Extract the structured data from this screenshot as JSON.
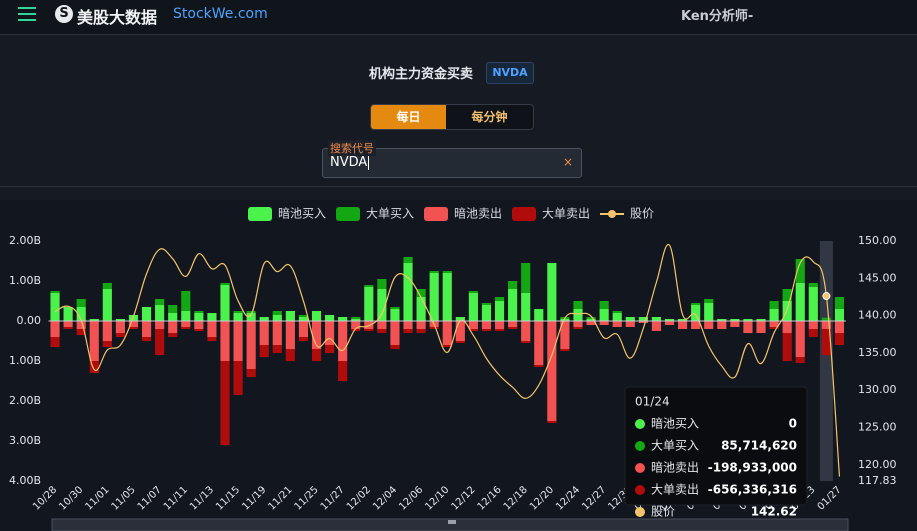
{
  "header": {
    "brand": "美股大数据",
    "site": "StockWe.com",
    "user": "Ken分析师-"
  },
  "page": {
    "title": "机构主力资金买卖",
    "symbol": "NVDA",
    "tabs": [
      "每日",
      "每分钟"
    ],
    "search_label": "搜索代号",
    "search_value": "NVDA"
  },
  "chart_data": {
    "type": "bar",
    "categories": [
      "10/28",
      null,
      "10/30",
      null,
      "11/01",
      null,
      "11/05",
      null,
      "11/07",
      null,
      "11/11",
      null,
      "11/13",
      null,
      "11/15",
      null,
      "11/19",
      null,
      "11/21",
      null,
      "11/25",
      null,
      "11/27",
      null,
      "12/02",
      null,
      "12/04",
      null,
      "12/06",
      null,
      "12/10",
      null,
      "12/12",
      null,
      "12/16",
      null,
      "12/18",
      null,
      "12/20",
      null,
      "12/24",
      null,
      "12/27",
      null,
      "12/31",
      null,
      "01/03",
      null,
      "01/07",
      null,
      "01/10",
      null,
      "01/14",
      null,
      "01/16",
      null,
      "01/21",
      null,
      "01/23",
      null,
      "01/27"
    ],
    "series": [
      {
        "name": "暗池买入",
        "color": "#4cf24c",
        "values": [
          700000000.0,
          350000000.0,
          350000000.0,
          50000000.0,
          800000000.0,
          50000000.0,
          150000000.0,
          350000000.0,
          400000000.0,
          200000000.0,
          250000000.0,
          200000000.0,
          200000000.0,
          900000000.0,
          200000000.0,
          200000000.0,
          100000000.0,
          150000000.0,
          250000000.0,
          100000000.0,
          250000000.0,
          150000000.0,
          100000000.0,
          50000000.0,
          850000000.0,
          800000000.0,
          300000000.0,
          1450000000.0,
          600000000.0,
          1200000000.0,
          1200000000.0,
          100000000.0,
          700000000.0,
          400000000.0,
          500000000.0,
          800000000.0,
          700000000.0,
          300000000.0,
          1450000000.0,
          50000000.0,
          300000000.0,
          50000000.0,
          300000000.0,
          200000000.0,
          100000000.0,
          100000000.0,
          100000000.0,
          50000000.0,
          50000000.0,
          400000000.0,
          450000000.0,
          50000000.0,
          50000000.0,
          50000000.0,
          50000000.0,
          300000000.0,
          500000000.0,
          950000000.0,
          850000000.0,
          0,
          300000000.0
        ]
      },
      {
        "name": "大单买入",
        "color": "#13a813",
        "values": [
          50000000.0,
          0,
          200000000.0,
          0,
          150000000.0,
          0,
          0,
          0,
          150000000.0,
          200000000.0,
          500000000.0,
          50000000.0,
          0,
          50000000.0,
          50000000.0,
          50000000.0,
          0,
          100000000.0,
          0,
          50000000.0,
          0,
          0,
          0,
          50000000.0,
          50000000.0,
          250000000.0,
          50000000.0,
          150000000.0,
          200000000.0,
          50000000.0,
          50000000.0,
          0,
          50000000.0,
          50000000.0,
          100000000.0,
          200000000.0,
          750000000.0,
          0,
          0,
          50000000.0,
          200000000.0,
          50000000.0,
          200000000.0,
          50000000.0,
          0,
          0,
          0,
          0,
          0,
          50000000.0,
          100000000.0,
          0,
          0,
          0,
          0,
          200000000.0,
          300000000.0,
          600000000.0,
          100000000.0,
          85714620,
          300000000.0
        ]
      },
      {
        "name": "暗池卖出",
        "color": "#f25252",
        "values": [
          -400000000.0,
          -150000000.0,
          -200000000.0,
          -1000000000.0,
          -500000000.0,
          -300000000.0,
          -150000000.0,
          -400000000.0,
          -200000000.0,
          -300000000.0,
          -150000000.0,
          -200000000.0,
          -400000000.0,
          -1000000000.0,
          -1000000000.0,
          -1200000000.0,
          -600000000.0,
          -600000000.0,
          -700000000.0,
          -400000000.0,
          -700000000.0,
          -600000000.0,
          -1000000000.0,
          -200000000.0,
          -200000000.0,
          -200000000.0,
          -600000000.0,
          -200000000.0,
          -200000000.0,
          -150000000.0,
          -600000000.0,
          -500000000.0,
          -200000000.0,
          -200000000.0,
          -200000000.0,
          -150000000.0,
          -500000000.0,
          -1100000000.0,
          -2500000000.0,
          -700000000.0,
          -150000000.0,
          -100000000.0,
          -100000000.0,
          -150000000.0,
          -150000000.0,
          -50000000.0,
          -250000000.0,
          -100000000.0,
          -200000000.0,
          -200000000.0,
          -200000000.0,
          -200000000.0,
          -150000000.0,
          -300000000.0,
          -300000000.0,
          -150000000.0,
          -300000000.0,
          -900000000.0,
          -200000000.0,
          -198933000,
          -300000000.0
        ]
      },
      {
        "name": "大单卖出",
        "color": "#b00c0c",
        "values": [
          -250000000.0,
          -50000000.0,
          -150000000.0,
          -300000000.0,
          -150000000.0,
          -100000000.0,
          -50000000.0,
          -100000000.0,
          -650000000.0,
          -100000000.0,
          -50000000.0,
          -50000000.0,
          -100000000.0,
          -2100000000.0,
          -850000000.0,
          -200000000.0,
          -300000000.0,
          -200000000.0,
          -300000000.0,
          -100000000.0,
          -300000000.0,
          -200000000.0,
          -500000000.0,
          -50000000.0,
          -50000000.0,
          -100000000.0,
          -100000000.0,
          -100000000.0,
          -100000000.0,
          -50000000.0,
          -50000000.0,
          -50000000.0,
          -50000000.0,
          -50000000.0,
          -50000000.0,
          -50000000.0,
          -50000000.0,
          -50000000.0,
          -50000000.0,
          -50000000.0,
          -50000000.0,
          0,
          0,
          0,
          0,
          0,
          0,
          0,
          0,
          0,
          0,
          0,
          0,
          0,
          0,
          -50000000.0,
          -700000000.0,
          -150000000.0,
          -200000000.0,
          -656336316,
          -300000000.0
        ]
      },
      {
        "name": "股价",
        "color": "#f5c46a",
        "type": "line",
        "axis": "y2",
        "values": [
          140.52,
          141.25,
          139.34,
          132.76,
          135.4,
          136.05,
          139.91,
          145.61,
          148.88,
          147.63,
          145.26,
          148.29,
          146.27,
          146.76,
          141.98,
          140.15,
          147.01,
          145.89,
          146.67,
          141.95,
          136.02,
          136.92,
          135.34,
          138.25,
          138.63,
          140.26,
          145.14,
          145.06,
          142.44,
          138.81,
          135.07,
          139.31,
          137.34,
          134.25,
          132.0,
          130.39,
          128.91,
          130.68,
          134.7,
          139.67,
          140.22,
          139.93,
          137.01,
          137.49,
          134.29,
          138.31,
          144.47,
          149.43,
          140.14,
          140.11,
          135.91,
          133.23,
          131.76,
          136.24,
          133.57,
          137.71,
          140.83,
          147.07,
          147.22,
          142.62,
          118.42
        ]
      }
    ],
    "ylim": [
      -4000000000.0,
      2000000000.0
    ],
    "yticks": [
      {
        "value": 2000000000.0,
        "label": "2.00B"
      },
      {
        "value": 1000000000.0,
        "label": "1.00B"
      },
      {
        "value": 0,
        "label": "0.00"
      },
      {
        "value": -1000000000.0,
        "label": "1.00B"
      },
      {
        "value": -2000000000.0,
        "label": "2.00B"
      },
      {
        "value": -3000000000.0,
        "label": "3.00B"
      },
      {
        "value": -4000000000.0,
        "label": "4.00B"
      }
    ],
    "y2lim": [
      117.83,
      150
    ],
    "y2ticks": [
      117.83,
      {
        "value": 120,
        "label": "120.00"
      },
      {
        "value": 125,
        "label": "125.00"
      },
      {
        "value": 130,
        "label": "130.00"
      },
      {
        "value": 135,
        "label": "135.00"
      },
      {
        "value": 140,
        "label": "140.00"
      },
      {
        "value": 145,
        "label": "145.00"
      },
      {
        "value": 150,
        "label": "150.00"
      }
    ],
    "grid": false,
    "legend": "top",
    "tooltip": {
      "date": "01/24",
      "values": [
        0,
        {
          "value": 85714620,
          "label": "85,714,620"
        },
        {
          "value": -198933000,
          "label": "-198,933,000"
        },
        {
          "value": -656336316,
          "label": "-656,336,316"
        },
        142.62
      ]
    }
  }
}
